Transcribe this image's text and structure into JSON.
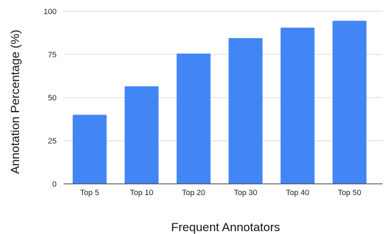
{
  "chart_data": {
    "type": "bar",
    "title": "",
    "xlabel": "Frequent Annotators",
    "ylabel": "Annotation Percentage  (%)",
    "categories": [
      "Top 5",
      "Top 10",
      "Top 20",
      "Top 30",
      "Top 40",
      "Top 50"
    ],
    "values": [
      40,
      56.5,
      75.5,
      84.5,
      90.5,
      94.5
    ],
    "ylim": [
      0,
      100
    ],
    "yticks": [
      0,
      25,
      50,
      75,
      100
    ],
    "grid": true,
    "legend": "none",
    "bar_color": "#4285f4",
    "grid_color": "#d9d9d9",
    "axis_color": "#333333"
  }
}
